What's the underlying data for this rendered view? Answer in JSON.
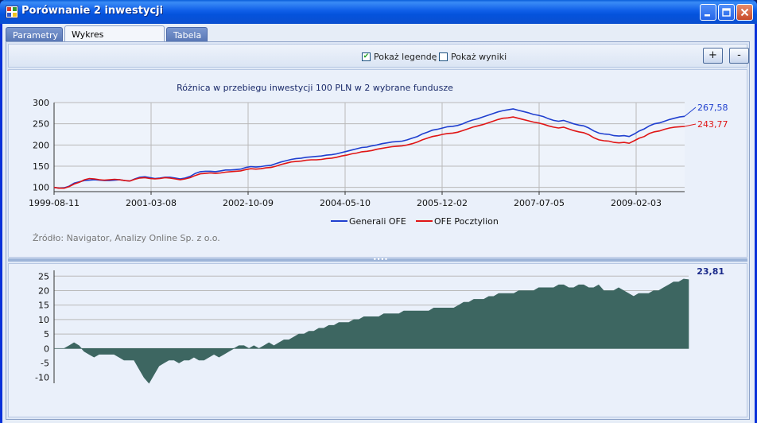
{
  "window": {
    "title": "Porównanie 2 inwestycji"
  },
  "tabs": [
    {
      "label": "Parametry"
    },
    {
      "label": "Wykres porównawczy"
    },
    {
      "label": "Tabela"
    }
  ],
  "toolbar": {
    "legend_checkbox": {
      "label": "Pokaż legendę",
      "checked": true
    },
    "results_checkbox": {
      "label": "Pokaż wyniki",
      "checked": false
    },
    "zoom_in_label": "+",
    "zoom_out_label": "-"
  },
  "source_note": "Źródło: Navigator, Analizy Online Sp. z o.o.",
  "chart_data": [
    {
      "type": "line",
      "title": "Różnica w przebiegu inwestycji 100 PLN w 2 wybrane fundusze",
      "xlabel": "",
      "ylabel": "",
      "ylim": [
        90,
        300
      ],
      "yticks": [
        100,
        150,
        200,
        250,
        300
      ],
      "x_tick_labels": [
        "1999-08-11",
        "2001-03-08",
        "2002-10-09",
        "2004-05-10",
        "2005-12-02",
        "2007-07-05",
        "2009-02-03"
      ],
      "grid": true,
      "legend": "bottom-center",
      "colors": {
        "generali": "#1f3fcf",
        "pocztylion": "#e01515"
      },
      "series": [
        {
          "name": "Generali OFE",
          "last_value_label": "267,58",
          "values": [
            100,
            98,
            99,
            103,
            110,
            113,
            116,
            117,
            118,
            117,
            116,
            116,
            117,
            118,
            116,
            115,
            120,
            124,
            125,
            123,
            121,
            122,
            124,
            124,
            122,
            120,
            122,
            126,
            133,
            137,
            138,
            138,
            137,
            139,
            141,
            141,
            142,
            143,
            147,
            149,
            148,
            149,
            151,
            152,
            156,
            160,
            163,
            166,
            168,
            169,
            171,
            172,
            173,
            174,
            176,
            177,
            179,
            182,
            185,
            188,
            191,
            194,
            195,
            198,
            200,
            203,
            205,
            207,
            208,
            209,
            212,
            216,
            220,
            226,
            230,
            235,
            237,
            240,
            243,
            244,
            246,
            250,
            255,
            259,
            262,
            266,
            270,
            274,
            278,
            281,
            283,
            285,
            282,
            279,
            276,
            272,
            270,
            267,
            262,
            258,
            256,
            258,
            254,
            250,
            247,
            245,
            240,
            233,
            228,
            226,
            225,
            222,
            221,
            222,
            220,
            226,
            233,
            238,
            245,
            250,
            252,
            256,
            260,
            263,
            266,
            267.58
          ]
        },
        {
          "name": "OFE Pocztylion",
          "last_value_label": "243,77",
          "values": [
            100,
            98,
            98,
            102,
            108,
            112,
            118,
            121,
            120,
            118,
            117,
            118,
            119,
            118,
            116,
            115,
            119,
            122,
            123,
            121,
            120,
            121,
            123,
            122,
            120,
            118,
            120,
            123,
            128,
            132,
            133,
            134,
            133,
            134,
            136,
            137,
            138,
            139,
            142,
            144,
            143,
            144,
            146,
            147,
            150,
            154,
            157,
            160,
            161,
            162,
            164,
            165,
            165,
            166,
            168,
            169,
            171,
            174,
            176,
            179,
            181,
            184,
            185,
            187,
            190,
            192,
            194,
            196,
            197,
            198,
            200,
            203,
            207,
            212,
            216,
            220,
            222,
            225,
            227,
            228,
            230,
            234,
            238,
            242,
            245,
            248,
            252,
            256,
            260,
            263,
            264,
            266,
            263,
            260,
            257,
            254,
            252,
            249,
            245,
            242,
            240,
            242,
            238,
            234,
            231,
            229,
            224,
            217,
            212,
            210,
            209,
            206,
            205,
            206,
            204,
            210,
            216,
            220,
            227,
            231,
            233,
            237,
            240,
            242,
            243,
            243.77
          ]
        }
      ]
    },
    {
      "type": "area",
      "title": "",
      "ylim": [
        -12,
        27
      ],
      "yticks": [
        -10,
        -5,
        0,
        5,
        10,
        15,
        20,
        25
      ],
      "color": "#3d6661",
      "last_value_label": "23,81",
      "series": [
        {
          "name": "",
          "values": [
            0,
            0,
            0,
            1,
            2,
            1,
            -1,
            -2,
            -3,
            -2,
            -2,
            -2,
            -2,
            -3,
            -4,
            -4,
            -4,
            -7,
            -10,
            -12,
            -9,
            -6,
            -5,
            -4,
            -4,
            -5,
            -4,
            -4,
            -3,
            -4,
            -4,
            -3,
            -2,
            -3,
            -2,
            -1,
            0,
            1,
            1,
            0,
            1,
            0,
            1,
            2,
            1,
            2,
            3,
            3,
            4,
            5,
            5,
            6,
            6,
            7,
            7,
            8,
            8,
            9,
            9,
            9,
            10,
            10,
            11,
            11,
            11,
            11,
            12,
            12,
            12,
            12,
            13,
            13,
            13,
            13,
            13,
            13,
            14,
            14,
            14,
            14,
            14,
            15,
            16,
            16,
            17,
            17,
            17,
            18,
            18,
            19,
            19,
            19,
            19,
            20,
            20,
            20,
            20,
            21,
            21,
            21,
            21,
            22,
            22,
            21,
            21,
            22,
            22,
            21,
            21,
            22,
            20,
            20,
            20,
            21,
            20,
            19,
            18,
            19,
            19,
            19,
            20,
            20,
            21,
            22,
            23,
            23,
            24,
            23.81
          ]
        }
      ]
    }
  ]
}
